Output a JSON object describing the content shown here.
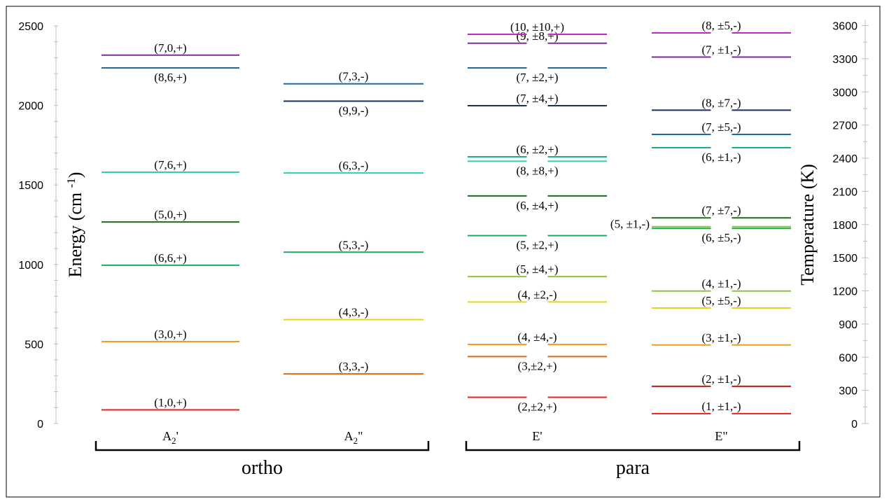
{
  "chart_data": {
    "type": "energy-level-diagram",
    "ylabel": "Energy (cm -1)",
    "ylabel_parts": {
      "main": "Energy (cm",
      "sup": "-1",
      "close": ")"
    },
    "y2label": "Temperature (K)",
    "ylim": [
      0,
      2500
    ],
    "yticks": [
      0,
      500,
      1000,
      1500,
      2000,
      2500
    ],
    "y2ticks": [
      0,
      300,
      600,
      900,
      1200,
      1500,
      1800,
      2100,
      2400,
      2700,
      3000,
      3300,
      3600
    ],
    "y2_per_y": 1.4388,
    "categories": [
      {
        "id": "A2p",
        "base": "A",
        "sub": "2",
        "suffix": "'"
      },
      {
        "id": "A2pp",
        "base": "A",
        "sub": "2",
        "suffix": "\""
      },
      {
        "id": "Ep",
        "base": "E",
        "sub": "",
        "suffix": "'"
      },
      {
        "id": "Epp",
        "base": "E",
        "sub": "",
        "suffix": "\""
      }
    ],
    "groups": [
      {
        "label": "ortho",
        "categories": [
          "A2p",
          "A2pp"
        ]
      },
      {
        "label": "para",
        "categories": [
          "Ep",
          "Epp"
        ]
      }
    ],
    "levels": {
      "A2p": [
        {
          "label": "(1,0,+)",
          "energy": 86,
          "color": "#e8211e",
          "pos": "above"
        },
        {
          "label": "(3,0,+)",
          "energy": 515,
          "color": "#f59a1c",
          "pos": "above"
        },
        {
          "label": "(6,6,+)",
          "energy": 995,
          "color": "#1aaa60",
          "pos": "above"
        },
        {
          "label": "(5,0,+)",
          "energy": 1267,
          "color": "#1b6b1b",
          "pos": "above"
        },
        {
          "label": "(7,6,+)",
          "energy": 1580,
          "color": "#2ecfb0",
          "pos": "above"
        },
        {
          "label": "(8,6,+)",
          "energy": 2236,
          "color": "#1a6aa8",
          "pos": "below"
        },
        {
          "label": "(7,0,+)",
          "energy": 2316,
          "color": "#7b2b9c",
          "pos": "above"
        }
      ],
      "A2pp": [
        {
          "label": "(3,3,-)",
          "energy": 312,
          "color": "#d86a10",
          "pos": "above"
        },
        {
          "label": "(4,3,-)",
          "energy": 653,
          "color": "#e8d21b",
          "pos": "above"
        },
        {
          "label": "(5,3,-)",
          "energy": 1077,
          "color": "#1aaa60",
          "pos": "above"
        },
        {
          "label": "(6,3,-)",
          "energy": 1575,
          "color": "#2ecfb0",
          "pos": "above"
        },
        {
          "label": "(9,9,-)",
          "energy": 2027,
          "color": "#1a2f5c",
          "pos": "below"
        },
        {
          "label": "(7,3,-)",
          "energy": 2136,
          "color": "#1a6aa8",
          "pos": "above"
        }
      ],
      "Ep": [
        {
          "label": "(2,±2,+)",
          "energy": 165,
          "color": "#e8211e",
          "pos": "below"
        },
        {
          "label": "(3,±2,+)",
          "energy": 421,
          "color": "#d86a10",
          "pos": "below"
        },
        {
          "label": "(4, ±4,-)",
          "energy": 497,
          "color": "#f59a1c",
          "pos": "above"
        },
        {
          "label": "(4, ±2,-)",
          "energy": 764,
          "color": "#e8d21b",
          "pos": "above"
        },
        {
          "label": "(5, ±4,+)",
          "energy": 924,
          "color": "#8cc63f",
          "pos": "above"
        },
        {
          "label": "(5, ±2,+)",
          "energy": 1181,
          "color": "#1aaa60",
          "pos": "below"
        },
        {
          "label": "(6, ±4,+)",
          "energy": 1431,
          "color": "#1b6b1b",
          "pos": "below"
        },
        {
          "label": "(8, ±8,+)",
          "energy": 1649,
          "color": "#2ecfb0",
          "pos": "below"
        },
        {
          "label": "(6, ±2,+)",
          "energy": 1677,
          "color": "#1aaa8c",
          "pos": "above"
        },
        {
          "label": "(7, ±4,+)",
          "energy": 1998,
          "color": "#1a2f5c",
          "pos": "above"
        },
        {
          "label": "(7, ±2,+)",
          "energy": 2236,
          "color": "#1a6aa8",
          "pos": "below"
        },
        {
          "label": "(9, ±8,+)",
          "energy": 2391,
          "color": "#7b2b9c",
          "pos": "above"
        },
        {
          "label": "(10, ±10,+)",
          "energy": 2447,
          "color": "#c028c0",
          "pos": "above"
        }
      ],
      "Epp": [
        {
          "label": "(1, ±1,-)",
          "energy": 62,
          "color": "#e8211e",
          "pos": "above"
        },
        {
          "label": "(2, ±1,-)",
          "energy": 234,
          "color": "#c01818",
          "pos": "above"
        },
        {
          "label": "(3, ±1,-)",
          "energy": 494,
          "color": "#f59a1c",
          "pos": "above"
        },
        {
          "label": "(5, ±5,-)",
          "energy": 726,
          "color": "#e8d21b",
          "pos": "above"
        },
        {
          "label": "(4, ±1,-)",
          "energy": 833,
          "color": "#8cc63f",
          "pos": "above"
        },
        {
          "label": "(5, ±1,-)",
          "energy": 1238,
          "color": "#8cc63f",
          "pos": "left"
        },
        {
          "label": "(6, ±5,-)",
          "energy": 1227,
          "color": "#1aaa60",
          "pos": "below"
        },
        {
          "label": "(7, ±7,-)",
          "energy": 1293,
          "color": "#1b6b1b",
          "pos": "above"
        },
        {
          "label": "(6, ±1,-)",
          "energy": 1734,
          "color": "#1aaa8c",
          "pos": "below"
        },
        {
          "label": "(7, ±5,-)",
          "energy": 1818,
          "color": "#1a6aa8",
          "pos": "above"
        },
        {
          "label": "(8, ±7,-)",
          "energy": 1970,
          "color": "#1a2f5c",
          "pos": "above"
        },
        {
          "label": "(7, ±1,-)",
          "energy": 2304,
          "color": "#7b2b9c",
          "pos": "above"
        },
        {
          "label": "(8, ±5,-)",
          "energy": 2456,
          "color": "#c028c0",
          "pos": "above"
        }
      ]
    }
  }
}
